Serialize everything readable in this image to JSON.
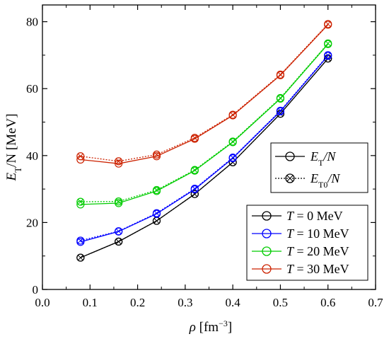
{
  "chart_data": {
    "type": "line",
    "xlabel": {
      "symbol": "ρ",
      "unit_open": " [fm",
      "unit_exp": "−3",
      "unit_close": "]"
    },
    "ylabel": {
      "main": "E",
      "sub": "T",
      "rest": "/N [MeV]"
    },
    "xlim": [
      0.0,
      0.7
    ],
    "ylim": [
      0,
      85
    ],
    "xticks": [
      "0.0",
      "0.1",
      "0.2",
      "0.3",
      "0.4",
      "0.5",
      "0.6",
      "0.7"
    ],
    "yticks": [
      "0",
      "20",
      "40",
      "60",
      "80"
    ],
    "x": [
      0.08,
      0.16,
      0.24,
      0.32,
      0.4,
      0.5,
      0.6
    ],
    "series": [
      {
        "name": "T =   0 MeV",
        "color": "#000000",
        "ET": [
          9.5,
          14.3,
          20.5,
          28.5,
          38.0,
          52.5,
          69.0
        ],
        "ET0": [
          9.5,
          14.3,
          20.5,
          28.5,
          38.0,
          52.5,
          69.0
        ]
      },
      {
        "name": "T = 10 MeV",
        "color": "#0000ff",
        "ET": [
          14.2,
          17.3,
          22.6,
          29.9,
          39.2,
          53.2,
          69.8
        ],
        "ET0": [
          14.6,
          17.4,
          22.8,
          30.1,
          39.4,
          53.4,
          70.0
        ]
      },
      {
        "name": "T = 20 MeV",
        "color": "#00cc00",
        "ET": [
          25.4,
          25.8,
          29.4,
          35.5,
          44.0,
          57.0,
          73.3
        ],
        "ET0": [
          26.2,
          26.3,
          29.7,
          35.7,
          44.2,
          57.2,
          73.5
        ]
      },
      {
        "name": "T = 30 MeV",
        "color": "#cc2200",
        "ET": [
          38.8,
          37.6,
          39.8,
          45.0,
          52.0,
          64.0,
          79.1
        ],
        "ET0": [
          39.8,
          38.3,
          40.3,
          45.3,
          52.2,
          64.2,
          79.3
        ]
      }
    ],
    "style_legend": {
      "entries": [
        {
          "main": "E",
          "sub": "T",
          "rest": "/N",
          "style": "solid"
        },
        {
          "main": "E",
          "sub": "T0",
          "rest": "/N",
          "style": "dotted"
        }
      ],
      "placement": "middle-right"
    },
    "color_legend": {
      "entries": [
        {
          "var": "T",
          "rest": " =   0 MeV"
        },
        {
          "var": "T",
          "rest": " = 10 MeV"
        },
        {
          "var": "T",
          "rest": " = 20 MeV"
        },
        {
          "var": "T",
          "rest": " = 30 MeV"
        }
      ],
      "placement": "bottom-right"
    },
    "grid": false
  }
}
